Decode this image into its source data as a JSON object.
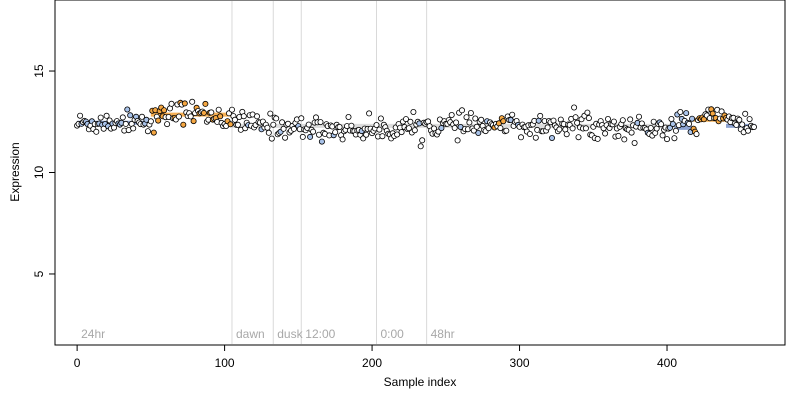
{
  "chart_data": {
    "type": "scatter",
    "title": "",
    "xlabel": "Sample index",
    "ylabel": "Expression",
    "xlim": [
      -15,
      480
    ],
    "ylim": [
      1.5,
      18.5
    ],
    "xticks": [
      0,
      100,
      200,
      300,
      400
    ],
    "yticks": [
      5,
      10,
      15
    ],
    "grid": false,
    "colors": {
      "point_default": "#ffffff",
      "point_highlight_orange": "#f5a742",
      "point_highlight_blue": "#a9c3ea",
      "trend_blue": "#7f98cc",
      "trend_orange": "#f5a742",
      "divider": "#d9d9d9",
      "region_label": "#a8a8a8"
    },
    "regions": [
      {
        "label": "24hr",
        "x": 0
      },
      {
        "label": "dawn",
        "x": 105
      },
      {
        "label": "dusk",
        "x": 133
      },
      {
        "label": "12:00",
        "x": 152
      },
      {
        "label": "0:00",
        "x": 203
      },
      {
        "label": "48hr",
        "x": 237
      }
    ],
    "dividers": [
      105,
      133,
      152,
      203,
      237
    ],
    "trend_segments": [
      {
        "x": [
          0,
          50
        ],
        "y": 12.45,
        "color": "blue"
      },
      {
        "x": [
          50,
          105
        ],
        "y": 12.85,
        "color": "orange"
      },
      {
        "x": [
          105,
          405
        ],
        "y": 12.3,
        "color": "none"
      },
      {
        "x": [
          405,
          418
        ],
        "y": 12.2,
        "color": "blue"
      },
      {
        "x": [
          418,
          440
        ],
        "y": 12.6,
        "color": "orange"
      },
      {
        "x": [
          440,
          460
        ],
        "y": 12.3,
        "color": "blue"
      }
    ],
    "series": [
      {
        "n_points": 460,
        "baseline_profile": [
          {
            "x": 0,
            "y": 12.4
          },
          {
            "x": 50,
            "y": 12.6
          },
          {
            "x": 70,
            "y": 13.0
          },
          {
            "x": 90,
            "y": 12.9
          },
          {
            "x": 105,
            "y": 12.5
          },
          {
            "x": 130,
            "y": 12.3
          },
          {
            "x": 150,
            "y": 12.2
          },
          {
            "x": 200,
            "y": 12.1
          },
          {
            "x": 240,
            "y": 12.3
          },
          {
            "x": 285,
            "y": 12.3
          },
          {
            "x": 350,
            "y": 12.3
          },
          {
            "x": 400,
            "y": 12.1
          },
          {
            "x": 420,
            "y": 12.4
          },
          {
            "x": 433,
            "y": 12.8
          },
          {
            "x": 460,
            "y": 12.2
          }
        ],
        "noise_sd": 0.28
      }
    ]
  }
}
